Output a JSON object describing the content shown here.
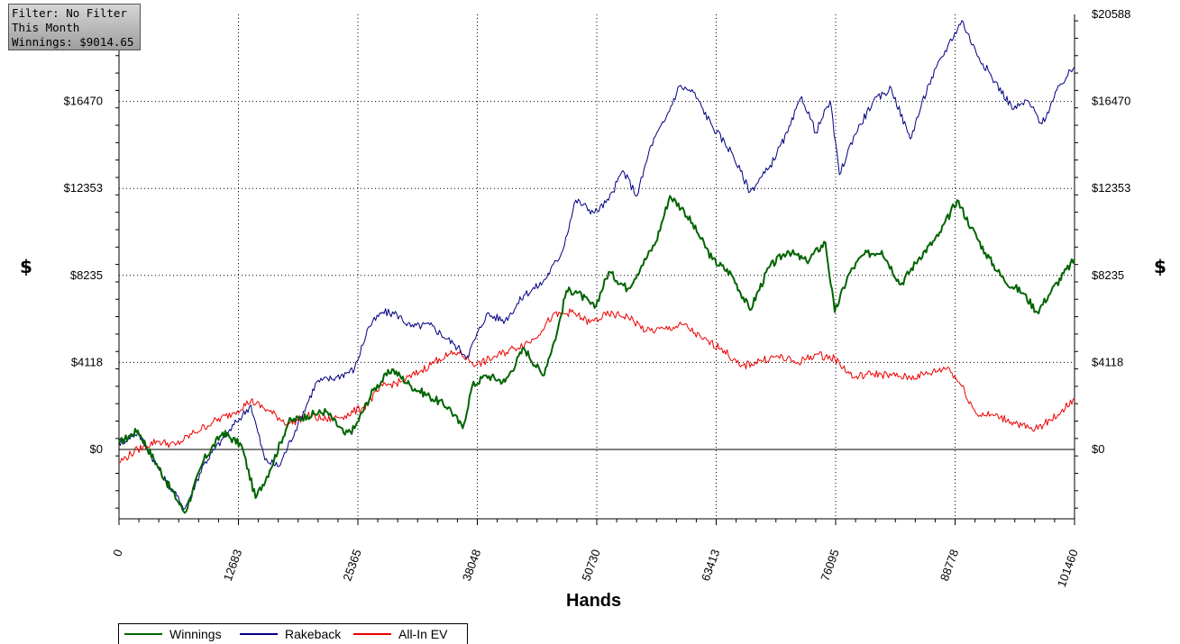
{
  "filter_box": {
    "filter": "Filter: No Filter",
    "period": "This Month",
    "winnings": "Winnings: $9014.65"
  },
  "chart_data": {
    "type": "line",
    "title": "",
    "xlabel": "Hands",
    "ylabel": "$",
    "xlim": [
      0,
      101460
    ],
    "ylim": [
      -3600,
      20588
    ],
    "x_ticks": [
      "0",
      "12683",
      "25365",
      "38048",
      "50730",
      "63413",
      "76095",
      "88778",
      "101460"
    ],
    "y_ticks_left": [
      "$0",
      "$4118",
      "$8235",
      "$12353",
      "$16470"
    ],
    "y_ticks_right": [
      "$0",
      "$4118",
      "$8235",
      "$12353",
      "$16470",
      "$20588"
    ],
    "grid": true,
    "legend_position": "bottom-left",
    "series": [
      {
        "name": "Winnings",
        "color": "#006400",
        "x": [
          0,
          2000,
          5000,
          7000,
          9000,
          11000,
          13000,
          14500,
          16000,
          18000,
          20000,
          22000,
          24000,
          25000,
          27000,
          29000,
          31000,
          33000,
          35000,
          36500,
          37500,
          39000,
          41000,
          43000,
          45000,
          46500,
          47500,
          48500,
          50500,
          52000,
          54000,
          55500,
          57000,
          58500,
          60000,
          61500,
          63000,
          65000,
          67000,
          69000,
          71000,
          73000,
          75000,
          76000,
          77500,
          79000,
          81000,
          83000,
          85000,
          87000,
          89000,
          90500,
          92000,
          94000,
          96000,
          97500,
          99000,
          101460
        ],
        "y": [
          300,
          900,
          -1500,
          -3000,
          -500,
          800,
          200,
          -2300,
          -1000,
          1300,
          1600,
          1800,
          700,
          1000,
          2800,
          3800,
          3000,
          2500,
          2000,
          1000,
          3000,
          3500,
          3200,
          4800,
          3500,
          5500,
          7500,
          7500,
          6700,
          8400,
          7600,
          8700,
          9800,
          12000,
          11300,
          10200,
          9000,
          8300,
          6600,
          8600,
          9400,
          8900,
          9800,
          6500,
          8300,
          9200,
          9400,
          7800,
          9100,
          10100,
          11800,
          10500,
          9300,
          8000,
          7400,
          6500,
          7500,
          9000
        ]
      },
      {
        "name": "Rakeback",
        "color": "#000080",
        "x": [
          0,
          2000,
          5000,
          7000,
          9000,
          11000,
          12500,
          14000,
          15500,
          17000,
          19000,
          21000,
          23000,
          25000,
          26500,
          28000,
          29500,
          31000,
          33000,
          35500,
          37000,
          39000,
          41000,
          43000,
          45000,
          47000,
          48500,
          50500,
          52000,
          53500,
          55000,
          56500,
          58000,
          59500,
          61000,
          63000,
          65000,
          67000,
          69000,
          71000,
          72500,
          74000,
          75500,
          76500,
          78000,
          80000,
          82000,
          84000,
          86000,
          88000,
          89500,
          91000,
          93000,
          95000,
          96500,
          98000,
          100000,
          101460
        ],
        "y": [
          300,
          800,
          -1500,
          -2800,
          -700,
          500,
          1300,
          2100,
          -500,
          -800,
          1200,
          3200,
          3400,
          3800,
          5800,
          6500,
          6400,
          5800,
          5900,
          5000,
          4400,
          6400,
          6100,
          7300,
          7900,
          9300,
          11800,
          11200,
          11800,
          13200,
          12000,
          14400,
          15600,
          17200,
          16900,
          15300,
          14100,
          12200,
          13300,
          15000,
          16700,
          15000,
          16500,
          13000,
          14800,
          16400,
          17100,
          14700,
          17300,
          19100,
          20300,
          18800,
          17400,
          16100,
          16500,
          15400,
          17300,
          18100
        ]
      },
      {
        "name": "All-In EV",
        "color": "#ee0000",
        "x": [
          0,
          2000,
          4000,
          6000,
          8000,
          10000,
          12000,
          14000,
          16000,
          18000,
          20000,
          22000,
          24000,
          26000,
          28000,
          30000,
          32000,
          34000,
          36000,
          38000,
          40000,
          42000,
          44000,
          46000,
          48000,
          50000,
          52000,
          54000,
          56000,
          58000,
          60000,
          62000,
          64000,
          66000,
          68000,
          70000,
          72000,
          74000,
          76000,
          78000,
          80000,
          82000,
          84000,
          86000,
          88000,
          89500,
          91000,
          93000,
          95000,
          97000,
          99000,
          101460
        ],
        "y": [
          -600,
          0,
          400,
          200,
          800,
          1300,
          1700,
          2300,
          1800,
          1200,
          1600,
          1400,
          1600,
          2000,
          3000,
          3200,
          3700,
          4300,
          4600,
          4000,
          4400,
          4800,
          5200,
          6300,
          6500,
          6000,
          6400,
          6300,
          5600,
          5700,
          5900,
          5200,
          4800,
          3900,
          4200,
          4400,
          4100,
          4500,
          4300,
          3400,
          3600,
          3500,
          3400,
          3600,
          3900,
          3000,
          1700,
          1600,
          1300,
          900,
          1400,
          2400
        ]
      }
    ]
  }
}
